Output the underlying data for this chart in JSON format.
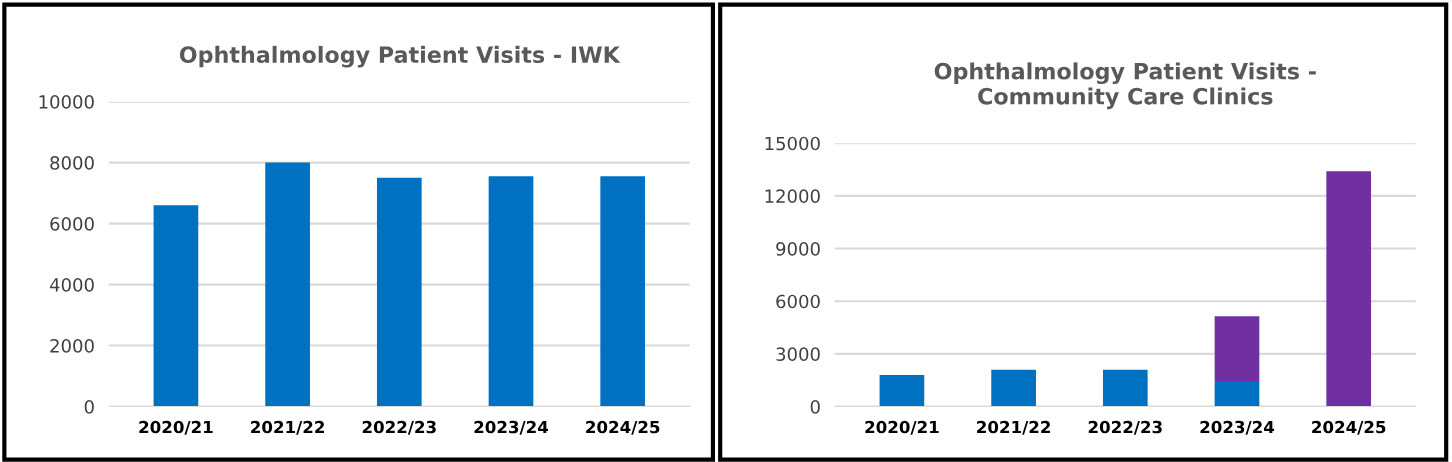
{
  "chart_data": [
    {
      "type": "bar",
      "title": "Ophthalmology Patient Visits - IWK",
      "categories": [
        "2020/21",
        "2021/22",
        "2022/23",
        "2023/24",
        "2024/25"
      ],
      "series": [
        {
          "color": "#0070c0",
          "values": [
            6600,
            8000,
            7500,
            7550,
            7550
          ]
        }
      ],
      "ylim": [
        0,
        10000
      ],
      "yticks": [
        0,
        2000,
        4000,
        6000,
        8000,
        10000
      ],
      "grid": "y"
    },
    {
      "type": "bar",
      "title": "Ophthalmology Patient Visits -\nCommunity Care Clinics",
      "categories": [
        "2020/21",
        "2021/22",
        "2022/23",
        "2023/24",
        "2024/25"
      ],
      "stacked": true,
      "series": [
        {
          "color": "#0070c0",
          "values": [
            1800,
            2100,
            2100,
            1450,
            0
          ]
        },
        {
          "color": "#7030a0",
          "values": [
            0,
            0,
            0,
            3700,
            13400
          ]
        }
      ],
      "ylim": [
        0,
        15000
      ],
      "yticks": [
        0,
        3000,
        6000,
        9000,
        12000,
        15000
      ],
      "grid": "y"
    }
  ]
}
